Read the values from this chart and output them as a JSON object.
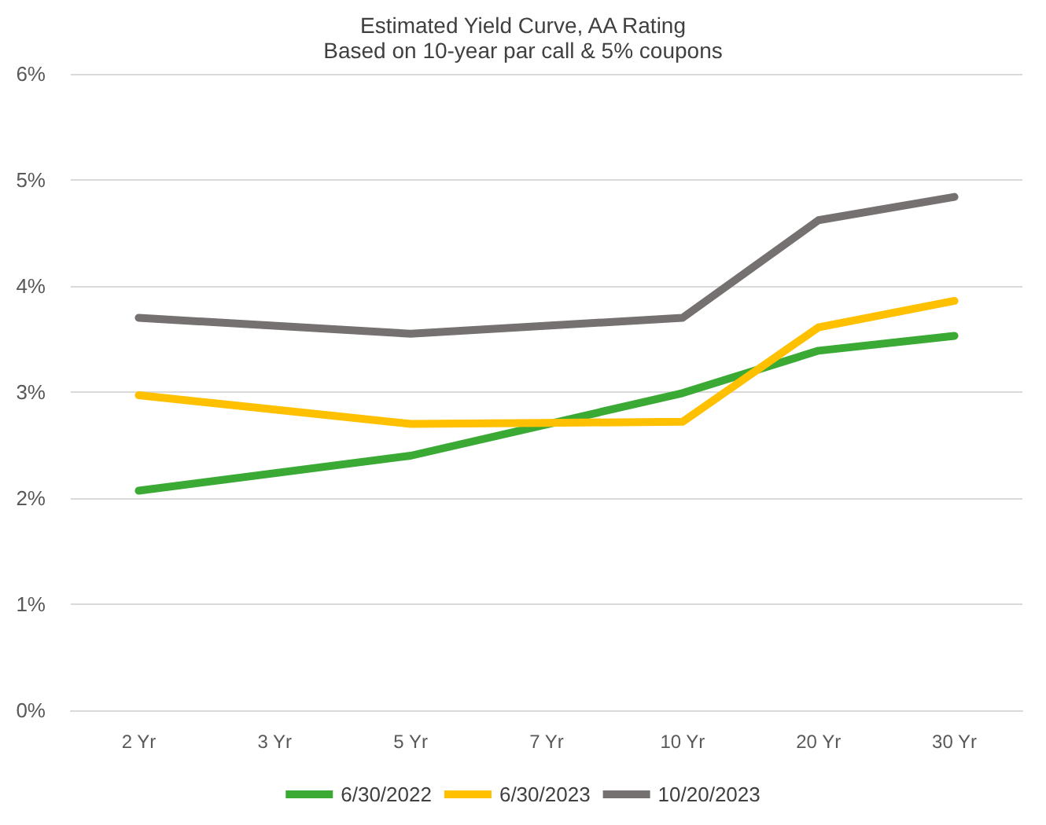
{
  "chart_data": {
    "type": "line",
    "title": "Estimated Yield Curve, AA Rating",
    "subtitle": "Based on 10-year par call & 5% coupons",
    "categories": [
      "2 Yr",
      "3 Yr",
      "5 Yr",
      "7 Yr",
      "10 Yr",
      "20 Yr",
      "30 Yr"
    ],
    "series": [
      {
        "name": "6/30/2022",
        "color": "#3aaa35",
        "values": [
          2.07,
          null,
          2.4,
          null,
          2.99,
          3.39,
          3.53
        ]
      },
      {
        "name": "6/30/2023",
        "color": "#ffc000",
        "values": [
          2.97,
          null,
          2.7,
          2.71,
          2.72,
          3.61,
          3.86
        ]
      },
      {
        "name": "10/20/2023",
        "color": "#767171",
        "values": [
          3.7,
          null,
          3.55,
          null,
          3.7,
          4.62,
          4.84
        ]
      }
    ],
    "ylim": [
      0,
      6
    ],
    "yticks": [
      {
        "value": 0,
        "label": "0%"
      },
      {
        "value": 1,
        "label": "1%"
      },
      {
        "value": 2,
        "label": "2%"
      },
      {
        "value": 3,
        "label": "3%"
      },
      {
        "value": 4,
        "label": "4%"
      },
      {
        "value": 5,
        "label": "5%"
      },
      {
        "value": 6,
        "label": "6%"
      }
    ],
    "grid": "y",
    "legend": "bottom",
    "marker": "none",
    "line_style": "solid"
  }
}
